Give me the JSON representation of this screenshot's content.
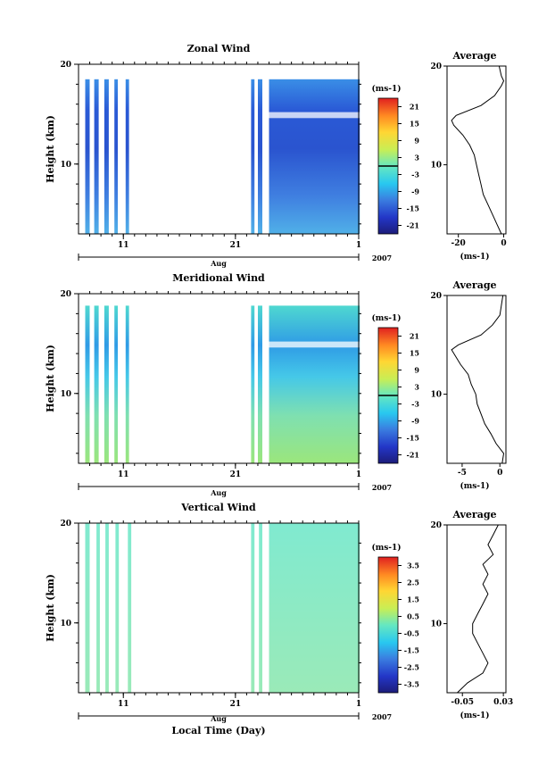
{
  "figure": {
    "xlabel": "Local Time (Day)",
    "x_month_label": "Aug",
    "x_year_label": "2007",
    "x_tick_labels": [
      "11",
      "21",
      "1"
    ]
  },
  "chart_data": [
    {
      "type": "heatmap",
      "title": "Zonal Wind",
      "ylabel": "Height (km)",
      "ylim": [
        3,
        20
      ],
      "yticks": [
        10,
        20
      ],
      "x_ticks": [
        "11",
        "21",
        "1"
      ],
      "colorbar": {
        "unit_label": "(ms-1)",
        "ticks": [
          "21",
          "15",
          "9",
          "3",
          "-3",
          "-9",
          "-15",
          "-21"
        ],
        "range": [
          -24,
          24
        ],
        "zero_line": true
      },
      "data_columns_day_ranges": [
        [
          7.6,
          8.0
        ],
        [
          8.4,
          8.8
        ],
        [
          9.3,
          9.7
        ],
        [
          10.2,
          10.5
        ],
        [
          11.2,
          11.5
        ],
        [
          22.4,
          22.7
        ],
        [
          23.0,
          23.4
        ],
        [
          24.0,
          32.1
        ]
      ],
      "note_values": "mostly easterly (negative) winds, strongest near 14 km"
    },
    {
      "type": "line",
      "title": "Average",
      "xlim": [
        -25,
        1
      ],
      "xticks": [
        "-20",
        "0"
      ],
      "xlabel": "(ms-1)",
      "ylim": [
        3,
        20
      ],
      "yticks": [
        10,
        20
      ],
      "series": [
        {
          "height_km": [
            3,
            4,
            5,
            6,
            7,
            8,
            9,
            10,
            11,
            12,
            13,
            14,
            14.5,
            15,
            16,
            17,
            18,
            18.5,
            19,
            20
          ],
          "value_ms": [
            -1,
            -3,
            -5,
            -7,
            -9,
            -10,
            -11,
            -12,
            -13,
            -15,
            -18,
            -22,
            -23,
            -21,
            -10,
            -4,
            -1,
            0,
            -1,
            -2
          ]
        }
      ]
    },
    {
      "type": "heatmap",
      "title": "Meridional Wind",
      "ylabel": "Height (km)",
      "ylim": [
        3,
        20
      ],
      "yticks": [
        10,
        20
      ],
      "x_ticks": [
        "11",
        "21",
        "1"
      ],
      "colorbar": {
        "unit_label": "(ms-1)",
        "ticks": [
          "21",
          "15",
          "9",
          "3",
          "-3",
          "-9",
          "-15",
          "-21"
        ],
        "range": [
          -24,
          24
        ],
        "zero_line": true
      },
      "data_columns_day_ranges": [
        [
          7.6,
          8.0
        ],
        [
          8.4,
          8.8
        ],
        [
          9.3,
          9.7
        ],
        [
          10.2,
          10.5
        ],
        [
          11.2,
          11.5
        ],
        [
          22.4,
          22.7
        ],
        [
          23.0,
          23.4
        ],
        [
          24.0,
          32.1
        ]
      ],
      "note_values": "weak winds, negative near 14 km"
    },
    {
      "type": "line",
      "title": "Average",
      "xlim": [
        -7,
        0.8
      ],
      "xticks": [
        "-5",
        "0"
      ],
      "xlabel": "(ms-1)",
      "ylim": [
        3,
        20
      ],
      "yticks": [
        10,
        20
      ],
      "series": [
        {
          "height_km": [
            3,
            4,
            5,
            6,
            7,
            8,
            9,
            10,
            11,
            12,
            13,
            14,
            14.5,
            15,
            16,
            17,
            18,
            19,
            20
          ],
          "value_ms": [
            0.3,
            0.5,
            -0.5,
            -1.2,
            -2,
            -2.5,
            -3,
            -3.2,
            -3.8,
            -4.2,
            -5.2,
            -6,
            -6.4,
            -5.5,
            -2.5,
            -1,
            0,
            0.2,
            0.4
          ]
        }
      ]
    },
    {
      "type": "heatmap",
      "title": "Vertical Wind",
      "ylabel": "Height (km)",
      "ylim": [
        3,
        20
      ],
      "yticks": [
        10,
        20
      ],
      "x_ticks": [
        "11",
        "21",
        "1"
      ],
      "colorbar": {
        "unit_label": "(ms-1)",
        "ticks": [
          "3.5",
          "2.5",
          "1.5",
          "0.5",
          "-0.5",
          "-1.5",
          "-2.5",
          "-3.5"
        ],
        "range": [
          -4,
          4
        ],
        "zero_line": false
      },
      "data_columns_day_ranges": [
        [
          7.6,
          8.0
        ],
        [
          8.6,
          8.9
        ],
        [
          9.4,
          9.7
        ],
        [
          10.3,
          10.6
        ],
        [
          11.4,
          11.7
        ],
        [
          22.4,
          22.7
        ],
        [
          23.1,
          23.4
        ],
        [
          24.0,
          32.1
        ]
      ],
      "note_values": "near-zero vertical wind"
    },
    {
      "type": "line",
      "title": "Average",
      "xlim": [
        -0.08,
        0.035
      ],
      "xticks": [
        "-0.05",
        "0.03"
      ],
      "xlabel": "(ms-1)",
      "ylim": [
        3,
        20
      ],
      "yticks": [
        10,
        20
      ],
      "series": [
        {
          "height_km": [
            3,
            4,
            5,
            6,
            7,
            8,
            9,
            10,
            11,
            12,
            13,
            14,
            15,
            16,
            17,
            18,
            19,
            20
          ],
          "value_ms": [
            -0.06,
            -0.04,
            -0.01,
            0.0,
            -0.01,
            -0.02,
            -0.03,
            -0.03,
            -0.02,
            -0.01,
            0.0,
            -0.01,
            0.0,
            -0.01,
            0.01,
            0.0,
            0.01,
            0.02
          ]
        }
      ]
    }
  ]
}
